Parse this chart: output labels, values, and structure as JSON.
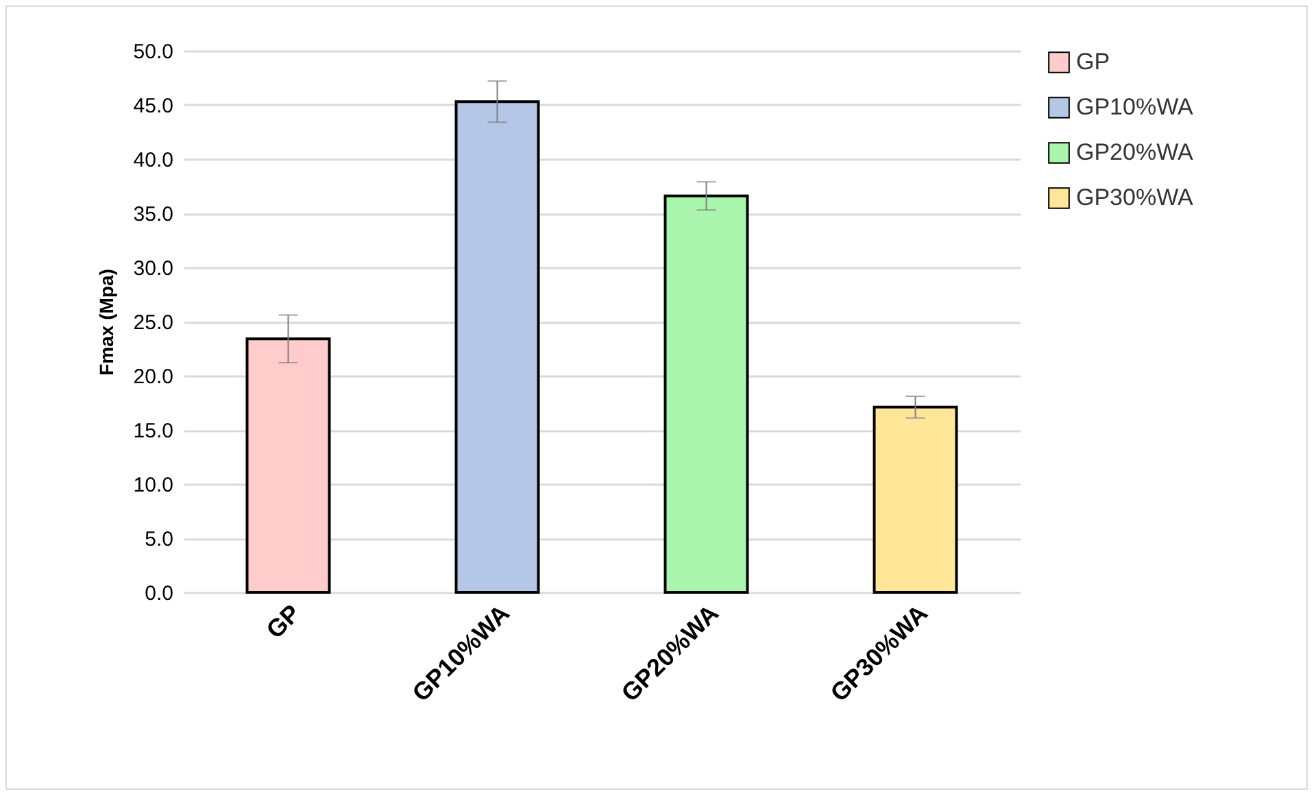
{
  "chart_data": {
    "type": "bar",
    "ylabel": "Fmax (Mpa)",
    "categories": [
      "GP",
      "GP10%WA",
      "GP20%WA",
      "GP30%WA"
    ],
    "series": [
      {
        "name": "GP",
        "color": "#ffcccc",
        "values": [
          23.4,
          null,
          null,
          null
        ],
        "errors": [
          2.2,
          null,
          null,
          null
        ]
      },
      {
        "name": "GP10%WA",
        "color": "#b4c7e7",
        "values": [
          null,
          45.3,
          null,
          null
        ],
        "errors": [
          null,
          1.9,
          null,
          null
        ]
      },
      {
        "name": "GP20%WA",
        "color": "#a9f5ad",
        "values": [
          null,
          null,
          36.6,
          null
        ],
        "errors": [
          null,
          null,
          1.3,
          null
        ]
      },
      {
        "name": "GP30%WA",
        "color": "#ffe699",
        "values": [
          null,
          null,
          null,
          17.1
        ],
        "errors": [
          null,
          null,
          null,
          1.0
        ]
      }
    ],
    "ylim": [
      0,
      50
    ],
    "yticks": [
      {
        "value": 0,
        "label": "0.0"
      },
      {
        "value": 5,
        "label": "5.0"
      },
      {
        "value": 10,
        "label": "10.0"
      },
      {
        "value": 15,
        "label": "15.0"
      },
      {
        "value": 20,
        "label": "20.0"
      },
      {
        "value": 25,
        "label": "25.0"
      },
      {
        "value": 30,
        "label": "30.0"
      },
      {
        "value": 35,
        "label": "35.0"
      },
      {
        "value": 40,
        "label": "40.0"
      },
      {
        "value": 45,
        "label": "45.0"
      },
      {
        "value": 50,
        "label": "50.0"
      }
    ],
    "grid": "y",
    "legend": "right"
  }
}
